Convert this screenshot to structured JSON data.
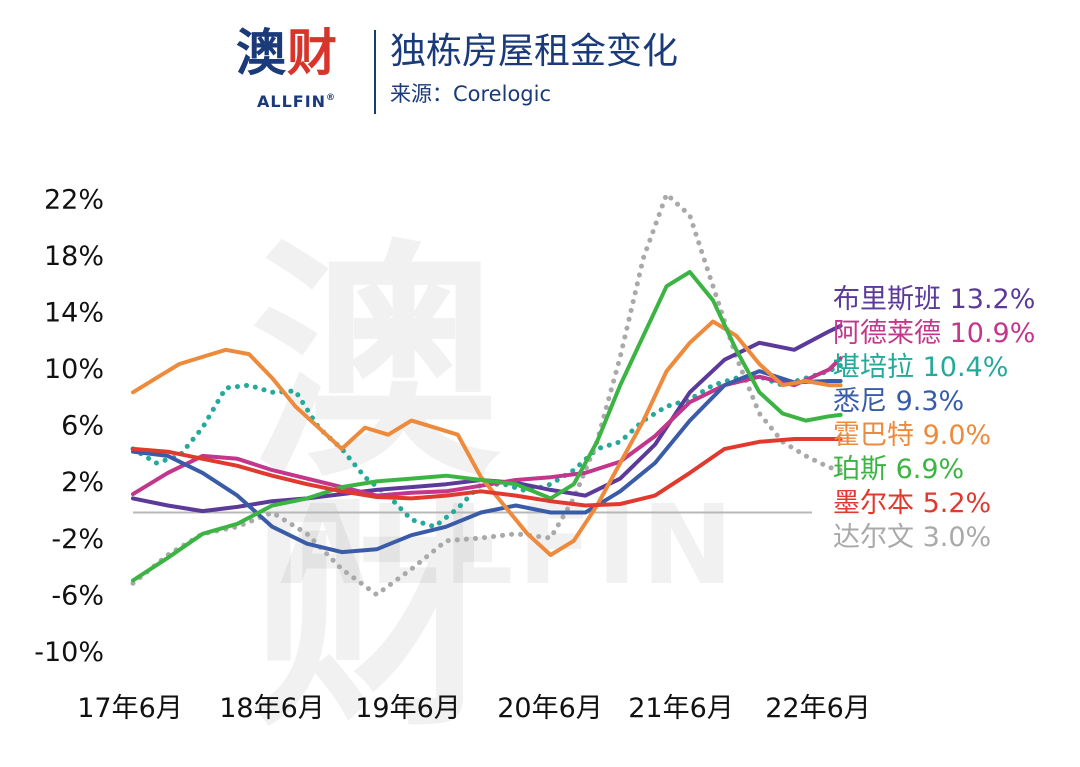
{
  "header": {
    "logo_cn_1": "澳",
    "logo_cn_2": "财",
    "logo_en": "ALLFIN",
    "logo_reg": "®",
    "title": "独栋房屋租金变化",
    "source": "来源：Corelogic"
  },
  "watermark": {
    "cn": "澳财",
    "en": "ALLFIN"
  },
  "chart_data": {
    "type": "line",
    "title": "独栋房屋租金变化",
    "xlabel": "",
    "ylabel": "",
    "ylim": [
      -10,
      24
    ],
    "yticks": [
      22,
      18,
      14,
      10,
      6,
      2,
      -2,
      -6,
      -10
    ],
    "ytick_labels": [
      "22%",
      "18%",
      "14%",
      "10%",
      "6%",
      "2%",
      "-2%",
      "-6%",
      "-10%"
    ],
    "xlim": [
      0,
      61
    ],
    "xticks": [
      0,
      12,
      24,
      36,
      48,
      60
    ],
    "xtick_labels": [
      "17年6月",
      "18年6月",
      "19年6月",
      "20年6月",
      "21年6月",
      "22年6月"
    ],
    "grid": false,
    "zero_line": true,
    "legend_position": "right",
    "series": [
      {
        "name": "布里斯班",
        "label": "13.2%",
        "color": "#5b3a9a",
        "style": "solid",
        "x": [
          0,
          3,
          6,
          9,
          12,
          15,
          18,
          21,
          24,
          27,
          30,
          33,
          36,
          39,
          42,
          45,
          48,
          51,
          54,
          57,
          60,
          61
        ],
        "y": [
          1.0,
          0.5,
          0.1,
          0.4,
          0.8,
          1.0,
          1.3,
          1.6,
          1.8,
          2.0,
          2.3,
          2.1,
          1.6,
          1.2,
          2.4,
          4.8,
          8.5,
          10.8,
          12.0,
          11.5,
          12.8,
          13.2
        ]
      },
      {
        "name": "阿德莱德",
        "label": "10.9%",
        "color": "#c2368b",
        "style": "solid",
        "x": [
          0,
          3,
          6,
          9,
          12,
          15,
          18,
          21,
          24,
          27,
          30,
          33,
          36,
          39,
          42,
          45,
          48,
          51,
          54,
          57,
          60,
          61
        ],
        "y": [
          1.3,
          2.8,
          4.0,
          3.8,
          3.0,
          2.4,
          1.8,
          1.2,
          1.4,
          1.5,
          1.9,
          2.3,
          2.5,
          2.8,
          3.6,
          5.4,
          7.8,
          9.0,
          9.6,
          9.0,
          10.1,
          10.9
        ]
      },
      {
        "name": "堪培拉",
        "label": "10.4%",
        "color": "#24a99a",
        "style": "dotted",
        "x": [
          0,
          2,
          4,
          6,
          8,
          10,
          12,
          14,
          16,
          18,
          20,
          22,
          24,
          26,
          28,
          30,
          32,
          34,
          36,
          38,
          40,
          42,
          44,
          46,
          48,
          50,
          52,
          54,
          56,
          58,
          60,
          61
        ],
        "y": [
          4.5,
          3.5,
          4.0,
          6.0,
          8.8,
          9.0,
          8.5,
          8.6,
          6.0,
          4.5,
          2.5,
          1.2,
          -0.5,
          -1.0,
          0.3,
          2.0,
          2.0,
          1.5,
          2.0,
          3.0,
          4.5,
          5.0,
          6.5,
          7.5,
          8.0,
          9.0,
          9.5,
          9.6,
          9.0,
          9.5,
          10.0,
          10.4
        ]
      },
      {
        "name": "悉尼",
        "label": "9.3%",
        "color": "#3a5ca8",
        "style": "solid",
        "x": [
          0,
          3,
          6,
          9,
          12,
          15,
          18,
          21,
          24,
          27,
          30,
          33,
          36,
          39,
          42,
          45,
          48,
          51,
          54,
          57,
          60,
          61
        ],
        "y": [
          4.3,
          4.0,
          2.8,
          1.2,
          -1.0,
          -2.2,
          -2.8,
          -2.6,
          -1.6,
          -1.0,
          0.0,
          0.5,
          0.0,
          0.0,
          1.5,
          3.5,
          6.5,
          9.0,
          10.0,
          9.2,
          9.3,
          9.3
        ]
      },
      {
        "name": "霍巴特",
        "label": "9.0%",
        "color": "#ee8a3c",
        "style": "solid",
        "x": [
          0,
          2,
          4,
          6,
          8,
          10,
          12,
          14,
          16,
          18,
          20,
          22,
          24,
          26,
          28,
          30,
          32,
          34,
          36,
          38,
          40,
          42,
          44,
          46,
          48,
          50,
          52,
          54,
          56,
          58,
          60,
          61
        ],
        "y": [
          8.5,
          9.5,
          10.5,
          11.0,
          11.5,
          11.2,
          9.5,
          7.5,
          6.0,
          4.5,
          6.0,
          5.5,
          6.5,
          6.0,
          5.5,
          2.5,
          0.5,
          -1.5,
          -3.0,
          -2.0,
          0.5,
          3.5,
          6.5,
          10.0,
          12.0,
          13.5,
          12.5,
          10.5,
          9.0,
          9.3,
          9.0,
          9.0
        ]
      },
      {
        "name": "珀斯",
        "label": "6.9%",
        "color": "#3cb444",
        "style": "solid",
        "x": [
          0,
          3,
          6,
          9,
          12,
          15,
          18,
          21,
          24,
          27,
          30,
          33,
          36,
          38,
          40,
          42,
          44,
          46,
          48,
          50,
          52,
          54,
          56,
          58,
          60,
          61
        ],
        "y": [
          -4.8,
          -3.2,
          -1.5,
          -0.8,
          0.5,
          1.0,
          1.8,
          2.2,
          2.4,
          2.6,
          2.3,
          2.0,
          1.0,
          2.0,
          5.0,
          9.0,
          12.5,
          16.0,
          17.0,
          15.0,
          11.5,
          8.5,
          7.0,
          6.5,
          6.8,
          6.9
        ]
      },
      {
        "name": "墨尔本",
        "label": "5.2%",
        "color": "#e03a2e",
        "style": "solid",
        "x": [
          0,
          3,
          6,
          9,
          12,
          15,
          18,
          21,
          24,
          27,
          30,
          33,
          36,
          39,
          42,
          45,
          48,
          51,
          54,
          57,
          60,
          61
        ],
        "y": [
          4.5,
          4.3,
          3.8,
          3.3,
          2.6,
          2.0,
          1.5,
          1.1,
          1.0,
          1.2,
          1.5,
          1.2,
          0.8,
          0.5,
          0.6,
          1.2,
          2.8,
          4.5,
          5.0,
          5.2,
          5.2,
          5.2
        ]
      },
      {
        "name": "达尔文",
        "label": "3.0%",
        "color": "#a9a9a9",
        "style": "dotted",
        "x": [
          0,
          3,
          6,
          9,
          12,
          15,
          18,
          21,
          24,
          27,
          30,
          33,
          36,
          38,
          40,
          42,
          44,
          46,
          48,
          50,
          52,
          54,
          56,
          58,
          60,
          61
        ],
        "y": [
          -5.0,
          -3.0,
          -1.5,
          -1.0,
          0.0,
          -1.5,
          -4.0,
          -5.8,
          -4.0,
          -2.0,
          -1.8,
          -1.5,
          -1.8,
          1.0,
          5.0,
          11.0,
          18.0,
          22.5,
          21.0,
          16.0,
          11.0,
          7.0,
          5.0,
          4.0,
          3.2,
          3.0
        ]
      }
    ]
  }
}
